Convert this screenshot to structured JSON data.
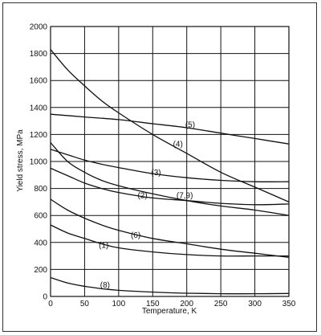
{
  "chart_data": {
    "type": "line",
    "xlabel": "Temperature, K",
    "ylabel": "Yield stress, MPa",
    "xlim": [
      0,
      350
    ],
    "ylim": [
      0,
      2000
    ],
    "x_ticks": [
      "0",
      "50",
      "100",
      "150",
      "200",
      "250",
      "300",
      "350"
    ],
    "y_ticks": [
      "0",
      "200",
      "400",
      "600",
      "800",
      "1000",
      "1200",
      "1400",
      "1600",
      "1800",
      "2000"
    ],
    "grid": true,
    "series": [
      {
        "name": "(1)",
        "x": [
          0,
          25,
          50,
          75,
          100,
          150,
          200,
          250,
          300,
          350
        ],
        "y": [
          530,
          470,
          430,
          390,
          360,
          330,
          310,
          300,
          300,
          300
        ]
      },
      {
        "name": "(2)",
        "x": [
          0,
          25,
          50,
          75,
          100,
          150,
          200,
          250,
          300,
          350
        ],
        "y": [
          950,
          895,
          840,
          800,
          770,
          730,
          710,
          690,
          680,
          685
        ]
      },
      {
        "name": "(3)",
        "x": [
          0,
          25,
          50,
          75,
          100,
          150,
          200,
          250,
          300,
          350
        ],
        "y": [
          1090,
          1050,
          1010,
          980,
          955,
          910,
          880,
          860,
          850,
          850
        ]
      },
      {
        "name": "(4)",
        "x": [
          0,
          25,
          50,
          75,
          100,
          150,
          200,
          250,
          300,
          350
        ],
        "y": [
          1830,
          1680,
          1560,
          1450,
          1360,
          1200,
          1060,
          920,
          810,
          700
        ]
      },
      {
        "name": "(5)",
        "x": [
          0,
          50,
          100,
          150,
          200,
          250,
          300,
          350
        ],
        "y": [
          1350,
          1330,
          1310,
          1280,
          1250,
          1210,
          1170,
          1130
        ]
      },
      {
        "name": "(6)",
        "x": [
          0,
          25,
          50,
          75,
          100,
          150,
          200,
          250,
          300,
          350
        ],
        "y": [
          720,
          640,
          580,
          530,
          490,
          430,
          390,
          350,
          320,
          290
        ]
      },
      {
        "name": "(7,9)",
        "x": [
          0,
          25,
          50,
          75,
          100,
          150,
          200,
          250,
          300,
          350
        ],
        "y": [
          1140,
          1000,
          920,
          860,
          820,
          760,
          710,
          670,
          640,
          600
        ]
      },
      {
        "name": "(8)",
        "x": [
          0,
          25,
          50,
          75,
          100,
          150,
          200,
          250,
          300,
          350
        ],
        "y": [
          140,
          100,
          75,
          58,
          45,
          32,
          24,
          20,
          20,
          22
        ]
      }
    ],
    "labels": [
      {
        "series": "(5)",
        "text": "(5)",
        "x": 205,
        "y": 1275
      },
      {
        "series": "(4)",
        "text": "(4)",
        "x": 187,
        "y": 1130
      },
      {
        "series": "(3)",
        "text": "(3)",
        "x": 155,
        "y": 920
      },
      {
        "series": "(2)",
        "text": "(2)",
        "x": 135,
        "y": 750
      },
      {
        "series": "(7,9)",
        "text": "(7,9)",
        "x": 197,
        "y": 750
      },
      {
        "series": "(6)",
        "text": "(6)",
        "x": 125,
        "y": 455
      },
      {
        "series": "(1)",
        "text": "(1)",
        "x": 78,
        "y": 380
      },
      {
        "series": "(8)",
        "text": "(8)",
        "x": 80,
        "y": 85
      }
    ]
  }
}
